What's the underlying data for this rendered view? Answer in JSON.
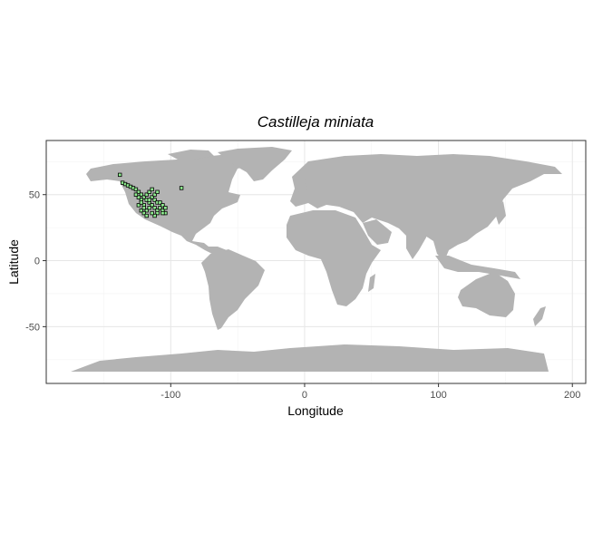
{
  "chart_data": {
    "type": "scatter",
    "title": "Castilleja miniata",
    "xlabel": "Longitude",
    "ylabel": "Latitude",
    "xlim": [
      -193,
      210
    ],
    "ylim": [
      -93,
      91
    ],
    "x_ticks": [
      -100,
      0,
      100,
      200
    ],
    "y_ticks": [
      -50,
      0,
      50
    ],
    "x_tick_labels": [
      "-100",
      "0",
      "100",
      "200"
    ],
    "y_tick_labels": [
      "-50",
      "0",
      "50"
    ],
    "grid": true,
    "legend": "none",
    "colors": {
      "land": "#b3b3b3",
      "grid_major": "#e6e6e6",
      "grid_minor": "#f3f3f3",
      "panel_border": "#333333",
      "occurrence_fill": "#90ee90",
      "occurrence_outline": "#000000"
    },
    "series": [
      {
        "values": [
          [
            -138,
            65
          ],
          [
            -136,
            59
          ],
          [
            -134,
            58
          ],
          [
            -132,
            57
          ],
          [
            -130,
            56
          ],
          [
            -128,
            55
          ],
          [
            -126,
            54
          ],
          [
            -124,
            52
          ],
          [
            -122,
            50
          ],
          [
            -120,
            48
          ],
          [
            -118,
            46
          ],
          [
            -116,
            44
          ],
          [
            -114,
            42
          ],
          [
            -112,
            40
          ],
          [
            -110,
            38
          ],
          [
            -122,
            46
          ],
          [
            -124,
            42
          ],
          [
            -122,
            38
          ],
          [
            -120,
            42
          ],
          [
            -118,
            50
          ],
          [
            -116,
            52
          ],
          [
            -114,
            48
          ],
          [
            -112,
            46
          ],
          [
            -110,
            44
          ],
          [
            -108,
            40
          ],
          [
            -106,
            38
          ],
          [
            -104,
            36
          ],
          [
            -110,
            36
          ],
          [
            -112,
            34
          ],
          [
            -118,
            38
          ],
          [
            -120,
            40
          ],
          [
            -122,
            44
          ],
          [
            -124,
            48
          ],
          [
            -126,
            50
          ],
          [
            -116,
            40
          ],
          [
            -114,
            36
          ],
          [
            -108,
            44
          ],
          [
            -106,
            42
          ],
          [
            -112,
            50
          ],
          [
            -114,
            54
          ],
          [
            -110,
            52
          ],
          [
            -104,
            40
          ],
          [
            -106,
            36
          ],
          [
            -120,
            36
          ],
          [
            -118,
            34
          ],
          [
            -116,
            46
          ],
          [
            -92,
            55
          ]
        ]
      }
    ]
  }
}
